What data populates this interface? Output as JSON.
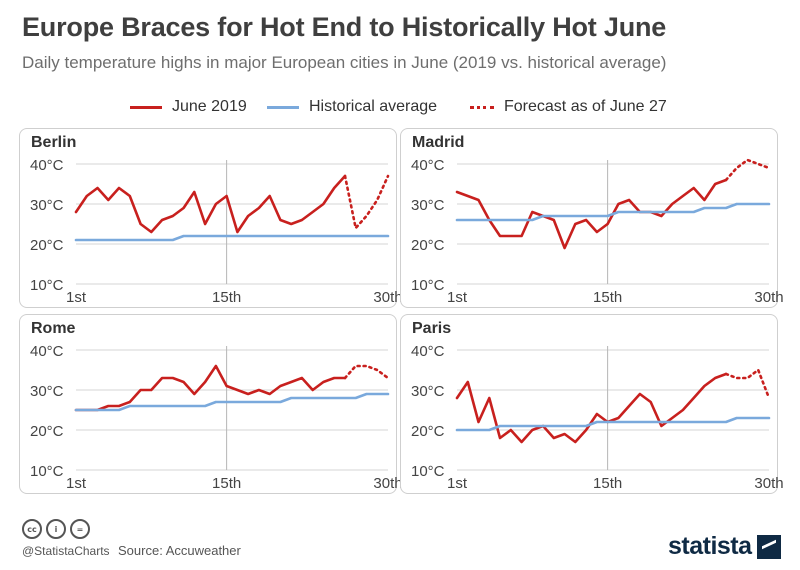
{
  "title": "Europe Braces for Hot End to Historically Hot June",
  "subtitle": "Daily temperature highs in major European cities in June (2019 vs. historical average)",
  "legend": {
    "june_2019": "June 2019",
    "historical": "Historical average",
    "forecast": "Forecast as of June 27"
  },
  "footer": {
    "handle": "@StatistaCharts",
    "source": "Source: Accuweather",
    "brand": "statista",
    "icons": [
      "cc-icon",
      "by-icon",
      "nd-icon"
    ]
  },
  "colors": {
    "june_2019": "#c8201e",
    "historical": "#7aa9dc",
    "grid": "#d6d6d6"
  },
  "chart_data": [
    {
      "type": "line",
      "title": "Berlin",
      "x_ticks": [
        "1st",
        "15th",
        "30th"
      ],
      "y_ticks": [
        "10°C",
        "20°C",
        "30°C",
        "40°C"
      ],
      "ylim": [
        10,
        40
      ],
      "xlim": [
        1,
        30
      ],
      "series": [
        {
          "name": "June 2019",
          "style": "solid",
          "x": [
            1,
            2,
            3,
            4,
            5,
            6,
            7,
            8,
            9,
            10,
            11,
            12,
            13,
            14,
            15,
            16,
            17,
            18,
            19,
            20,
            21,
            22,
            23,
            24,
            25,
            26
          ],
          "values": [
            28,
            32,
            34,
            31,
            34,
            32,
            25,
            23,
            26,
            27,
            29,
            33,
            25,
            30,
            32,
            23,
            27,
            29,
            32,
            26,
            25,
            26,
            28,
            30,
            34,
            37
          ]
        },
        {
          "name": "Forecast as of June 27",
          "style": "dotted",
          "x": [
            26,
            27,
            28,
            29,
            30
          ],
          "values": [
            37,
            24,
            27,
            31,
            37
          ]
        },
        {
          "name": "Historical average",
          "style": "solid",
          "x": [
            1,
            10,
            11,
            30
          ],
          "values": [
            21,
            21,
            22,
            22
          ]
        }
      ]
    },
    {
      "type": "line",
      "title": "Madrid",
      "x_ticks": [
        "1st",
        "15th",
        "30th"
      ],
      "y_ticks": [
        "10°C",
        "20°C",
        "30°C",
        "40°C"
      ],
      "ylim": [
        10,
        40
      ],
      "xlim": [
        1,
        30
      ],
      "series": [
        {
          "name": "June 2019",
          "style": "solid",
          "x": [
            1,
            2,
            3,
            4,
            5,
            6,
            7,
            8,
            9,
            10,
            11,
            12,
            13,
            14,
            15,
            16,
            17,
            18,
            19,
            20,
            21,
            22,
            23,
            24,
            25,
            26
          ],
          "values": [
            33,
            32,
            31,
            26,
            22,
            22,
            22,
            28,
            27,
            26,
            19,
            25,
            26,
            23,
            25,
            30,
            31,
            28,
            28,
            27,
            30,
            32,
            34,
            31,
            35,
            36
          ]
        },
        {
          "name": "Forecast as of June 27",
          "style": "dotted",
          "x": [
            26,
            27,
            28,
            29,
            30
          ],
          "values": [
            36,
            39,
            41,
            40,
            39
          ]
        },
        {
          "name": "Historical average",
          "style": "solid",
          "x": [
            1,
            8,
            9,
            15,
            16,
            23,
            24,
            26,
            27,
            30
          ],
          "values": [
            26,
            26,
            27,
            27,
            28,
            28,
            29,
            29,
            30,
            30
          ]
        }
      ]
    },
    {
      "type": "line",
      "title": "Rome",
      "x_ticks": [
        "1st",
        "15th",
        "30th"
      ],
      "y_ticks": [
        "10°C",
        "20°C",
        "30°C",
        "40°C"
      ],
      "ylim": [
        10,
        40
      ],
      "xlim": [
        1,
        30
      ],
      "series": [
        {
          "name": "June 2019",
          "style": "solid",
          "x": [
            1,
            2,
            3,
            4,
            5,
            6,
            7,
            8,
            9,
            10,
            11,
            12,
            13,
            14,
            15,
            16,
            17,
            18,
            19,
            20,
            21,
            22,
            23,
            24,
            25,
            26
          ],
          "values": [
            25,
            25,
            25,
            26,
            26,
            27,
            30,
            30,
            33,
            33,
            32,
            29,
            32,
            36,
            31,
            30,
            29,
            30,
            29,
            31,
            32,
            33,
            30,
            32,
            33,
            33
          ]
        },
        {
          "name": "Forecast as of June 27",
          "style": "dotted",
          "x": [
            26,
            27,
            28,
            29,
            30
          ],
          "values": [
            33,
            36,
            36,
            35,
            33
          ]
        },
        {
          "name": "Historical average",
          "style": "solid",
          "x": [
            1,
            5,
            6,
            13,
            14,
            20,
            21,
            27,
            28,
            30
          ],
          "values": [
            25,
            25,
            26,
            26,
            27,
            27,
            28,
            28,
            29,
            29
          ]
        }
      ]
    },
    {
      "type": "line",
      "title": "Paris",
      "x_ticks": [
        "1st",
        "15th",
        "30th"
      ],
      "y_ticks": [
        "10°C",
        "20°C",
        "30°C",
        "40°C"
      ],
      "ylim": [
        10,
        40
      ],
      "xlim": [
        1,
        30
      ],
      "series": [
        {
          "name": "June 2019",
          "style": "solid",
          "x": [
            1,
            2,
            3,
            4,
            5,
            6,
            7,
            8,
            9,
            10,
            11,
            12,
            13,
            14,
            15,
            16,
            17,
            18,
            19,
            20,
            21,
            22,
            23,
            24,
            25,
            26
          ],
          "values": [
            28,
            32,
            22,
            28,
            18,
            20,
            17,
            20,
            21,
            18,
            19,
            17,
            20,
            24,
            22,
            23,
            26,
            29,
            27,
            21,
            23,
            25,
            28,
            31,
            33,
            34
          ]
        },
        {
          "name": "Forecast as of June 27",
          "style": "dotted",
          "x": [
            26,
            27,
            28,
            29,
            30
          ],
          "values": [
            34,
            33,
            33,
            35,
            28
          ]
        },
        {
          "name": "Historical average",
          "style": "solid",
          "x": [
            1,
            4,
            5,
            13,
            14,
            26,
            27,
            30
          ],
          "values": [
            20,
            20,
            21,
            21,
            22,
            22,
            23,
            23
          ]
        }
      ]
    }
  ]
}
